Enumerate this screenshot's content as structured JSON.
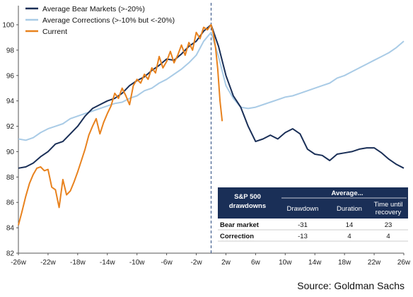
{
  "chart_data": {
    "type": "line",
    "x_tick_labels": [
      "-26w",
      "-22w",
      "-18w",
      "-14w",
      "-10w",
      "-6w",
      "-2w",
      "2w",
      "6w",
      "10w",
      "14w",
      "18w",
      "22w",
      "26w"
    ],
    "x_ticks": [
      -26,
      -22,
      -18,
      -14,
      -10,
      -6,
      -2,
      2,
      6,
      10,
      14,
      18,
      22,
      26
    ],
    "xlim": [
      -26,
      26
    ],
    "ylim": [
      82,
      100
    ],
    "y_ticks": [
      82,
      84,
      86,
      88,
      90,
      92,
      94,
      96,
      98,
      100
    ],
    "vertical_line_at": 0,
    "series": [
      {
        "name": "Average Bear Markets (>-20%)",
        "color": "#1a2f57",
        "points": [
          [
            -26,
            88.7
          ],
          [
            -25,
            88.8
          ],
          [
            -24,
            89.1
          ],
          [
            -23,
            89.6
          ],
          [
            -22,
            90.0
          ],
          [
            -21,
            90.6
          ],
          [
            -20,
            90.8
          ],
          [
            -19,
            91.4
          ],
          [
            -18,
            92.0
          ],
          [
            -17,
            92.8
          ],
          [
            -16,
            93.4
          ],
          [
            -15,
            93.7
          ],
          [
            -14,
            94.0
          ],
          [
            -13,
            94.2
          ],
          [
            -12,
            94.6
          ],
          [
            -11,
            95.2
          ],
          [
            -10,
            95.6
          ],
          [
            -9,
            95.9
          ],
          [
            -8,
            96.4
          ],
          [
            -7,
            96.8
          ],
          [
            -6,
            97.3
          ],
          [
            -5,
            97.2
          ],
          [
            -4,
            97.7
          ],
          [
            -3,
            98.3
          ],
          [
            -2,
            98.7
          ],
          [
            -1,
            99.5
          ],
          [
            0,
            100.0
          ],
          [
            1,
            98.3
          ],
          [
            2,
            96.0
          ],
          [
            3,
            94.4
          ],
          [
            4,
            93.5
          ],
          [
            5,
            92.0
          ],
          [
            6,
            90.8
          ],
          [
            7,
            91.0
          ],
          [
            8,
            91.3
          ],
          [
            9,
            91.0
          ],
          [
            10,
            91.5
          ],
          [
            11,
            91.8
          ],
          [
            12,
            91.4
          ],
          [
            13,
            90.2
          ],
          [
            14,
            89.8
          ],
          [
            15,
            89.7
          ],
          [
            16,
            89.3
          ],
          [
            17,
            89.8
          ],
          [
            18,
            89.9
          ],
          [
            19,
            90.0
          ],
          [
            20,
            90.2
          ],
          [
            21,
            90.3
          ],
          [
            22,
            90.3
          ],
          [
            23,
            89.9
          ],
          [
            24,
            89.4
          ],
          [
            25,
            89.0
          ],
          [
            26,
            88.7
          ]
        ]
      },
      {
        "name": "Average Corrections (>-10% but <-20%)",
        "color": "#a9cbe6",
        "points": [
          [
            -26,
            91.0
          ],
          [
            -25,
            90.9
          ],
          [
            -24,
            91.1
          ],
          [
            -23,
            91.5
          ],
          [
            -22,
            91.8
          ],
          [
            -21,
            92.0
          ],
          [
            -20,
            92.2
          ],
          [
            -19,
            92.6
          ],
          [
            -18,
            92.8
          ],
          [
            -17,
            93.0
          ],
          [
            -16,
            93.2
          ],
          [
            -15,
            93.4
          ],
          [
            -14,
            93.6
          ],
          [
            -13,
            93.8
          ],
          [
            -12,
            93.9
          ],
          [
            -11,
            94.2
          ],
          [
            -10,
            94.4
          ],
          [
            -9,
            94.8
          ],
          [
            -8,
            95.0
          ],
          [
            -7,
            95.4
          ],
          [
            -6,
            95.7
          ],
          [
            -5,
            96.1
          ],
          [
            -4,
            96.5
          ],
          [
            -3,
            97.0
          ],
          [
            -2,
            97.6
          ],
          [
            -1,
            98.7
          ],
          [
            0,
            99.4
          ],
          [
            1,
            97.5
          ],
          [
            2,
            95.2
          ],
          [
            3,
            94.2
          ],
          [
            4,
            93.5
          ],
          [
            5,
            93.4
          ],
          [
            6,
            93.5
          ],
          [
            7,
            93.7
          ],
          [
            8,
            93.9
          ],
          [
            9,
            94.1
          ],
          [
            10,
            94.3
          ],
          [
            11,
            94.4
          ],
          [
            12,
            94.6
          ],
          [
            13,
            94.8
          ],
          [
            14,
            95.0
          ],
          [
            15,
            95.2
          ],
          [
            16,
            95.4
          ],
          [
            17,
            95.8
          ],
          [
            18,
            96.0
          ],
          [
            19,
            96.3
          ],
          [
            20,
            96.6
          ],
          [
            21,
            96.9
          ],
          [
            22,
            97.2
          ],
          [
            23,
            97.5
          ],
          [
            24,
            97.8
          ],
          [
            25,
            98.2
          ],
          [
            26,
            98.7
          ]
        ]
      },
      {
        "name": "Current",
        "color": "#e8821e",
        "points": [
          [
            -26,
            84.2
          ],
          [
            -25.5,
            85.3
          ],
          [
            -25,
            86.5
          ],
          [
            -24.5,
            87.5
          ],
          [
            -24,
            88.2
          ],
          [
            -23.5,
            88.7
          ],
          [
            -23,
            88.8
          ],
          [
            -22.5,
            88.5
          ],
          [
            -22,
            88.6
          ],
          [
            -21.5,
            87.2
          ],
          [
            -21,
            87.0
          ],
          [
            -20.5,
            85.6
          ],
          [
            -20,
            87.8
          ],
          [
            -19.5,
            86.6
          ],
          [
            -19,
            86.9
          ],
          [
            -18.5,
            87.6
          ],
          [
            -18,
            88.4
          ],
          [
            -17.5,
            89.3
          ],
          [
            -17,
            90.2
          ],
          [
            -16.5,
            91.3
          ],
          [
            -16,
            92.0
          ],
          [
            -15.5,
            92.6
          ],
          [
            -15,
            91.4
          ],
          [
            -14.5,
            92.3
          ],
          [
            -14,
            93.0
          ],
          [
            -13.5,
            93.6
          ],
          [
            -13,
            94.6
          ],
          [
            -12.5,
            94.2
          ],
          [
            -12,
            95.0
          ],
          [
            -11.5,
            94.4
          ],
          [
            -11,
            93.7
          ],
          [
            -10.5,
            95.2
          ],
          [
            -10,
            95.7
          ],
          [
            -9.5,
            95.4
          ],
          [
            -9,
            96.1
          ],
          [
            -8.5,
            95.7
          ],
          [
            -8,
            96.6
          ],
          [
            -7.5,
            96.2
          ],
          [
            -7,
            97.5
          ],
          [
            -6.5,
            96.6
          ],
          [
            -6,
            97.1
          ],
          [
            -5.5,
            97.9
          ],
          [
            -5,
            97.0
          ],
          [
            -4.5,
            97.6
          ],
          [
            -4,
            98.4
          ],
          [
            -3.5,
            97.6
          ],
          [
            -3,
            98.6
          ],
          [
            -2.5,
            98.0
          ],
          [
            -2,
            99.4
          ],
          [
            -1.5,
            98.9
          ],
          [
            -1,
            99.8
          ],
          [
            -0.5,
            99.6
          ],
          [
            0,
            100.0
          ],
          [
            0.3,
            99.3
          ],
          [
            0.6,
            98.2
          ],
          [
            0.9,
            96.5
          ],
          [
            1.2,
            94.0
          ],
          [
            1.5,
            92.4
          ]
        ]
      }
    ],
    "table": {
      "header_left_line1": "S&P 500",
      "header_left_line2": "drawdowns",
      "group_header": "Average...",
      "columns": [
        "Drawdown",
        "Duration",
        "Time until recovery"
      ],
      "columns_display": [
        [
          "Drawdown"
        ],
        [
          "Duration"
        ],
        [
          "Time until",
          "recovery"
        ]
      ],
      "rows": [
        {
          "label": "Bear market",
          "values": [
            "-31",
            "14",
            "23"
          ]
        },
        {
          "label": "Correction",
          "values": [
            "-13",
            "4",
            "4"
          ]
        }
      ]
    },
    "colors": {
      "table_header_bg": "#1a2f57",
      "table_header_text": "#ffffff",
      "vline": "#2a4a80",
      "axis": "#555555"
    }
  },
  "source": "Source: Goldman Sachs"
}
